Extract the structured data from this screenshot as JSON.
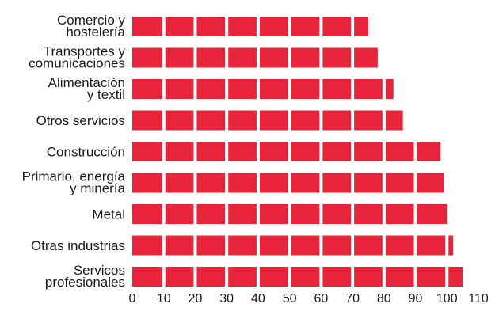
{
  "chart_data": {
    "type": "bar",
    "orientation": "horizontal",
    "categories": [
      [
        "Comercio y",
        "hostelería"
      ],
      [
        "Transportes y",
        "comunicaciones"
      ],
      [
        "Alimentación",
        "y textil"
      ],
      [
        "Otros servicios"
      ],
      [
        "Construcción"
      ],
      [
        "Primario, energía",
        "y minería"
      ],
      [
        "Metal"
      ],
      [
        "Otras industrias"
      ],
      [
        "Servicos",
        "profesionales"
      ]
    ],
    "values": [
      75,
      78,
      83,
      86,
      98,
      99,
      100,
      102,
      105
    ],
    "xlim": [
      0,
      110
    ],
    "xticks": [
      0,
      10,
      20,
      30,
      40,
      50,
      60,
      70,
      80,
      90,
      100,
      110
    ],
    "segment_step": 10,
    "grid": false,
    "bar_color": "#e8243a",
    "segment_gap_color": "#ffffff"
  }
}
